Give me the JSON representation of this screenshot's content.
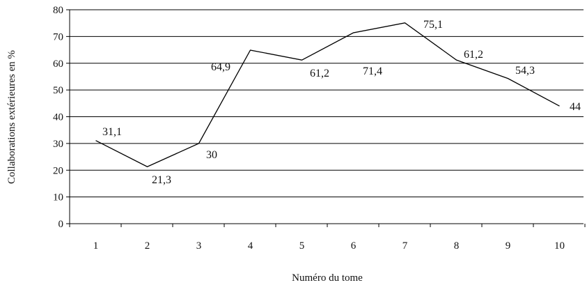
{
  "chart_data": {
    "type": "line",
    "title": "",
    "xlabel": "Numéro du tome",
    "ylabel": "Collaborations extérieures en %",
    "x": [
      1,
      2,
      3,
      4,
      5,
      6,
      7,
      8,
      9,
      10
    ],
    "x_tick_labels": [
      "1",
      "2",
      "3",
      "4",
      "5",
      "6",
      "7",
      "8",
      "9",
      "10"
    ],
    "y_ticks": [
      0,
      10,
      20,
      30,
      40,
      50,
      60,
      70,
      80
    ],
    "y_tick_labels": [
      "0",
      "10",
      "20",
      "30",
      "40",
      "50",
      "60",
      "70",
      "80"
    ],
    "ylim": [
      0,
      80
    ],
    "grid": "horizontal",
    "legend": "none",
    "line_color": "#000000",
    "series": [
      {
        "values": [
          31.1,
          21.3,
          30,
          64.9,
          61.2,
          71.4,
          75.1,
          61.2,
          54.3,
          44
        ],
        "labels": [
          "31,1",
          "21,3",
          "30",
          "64,9",
          "61,2",
          "71,4",
          "75,1",
          "61,2",
          "54,3",
          "44"
        ]
      }
    ]
  }
}
